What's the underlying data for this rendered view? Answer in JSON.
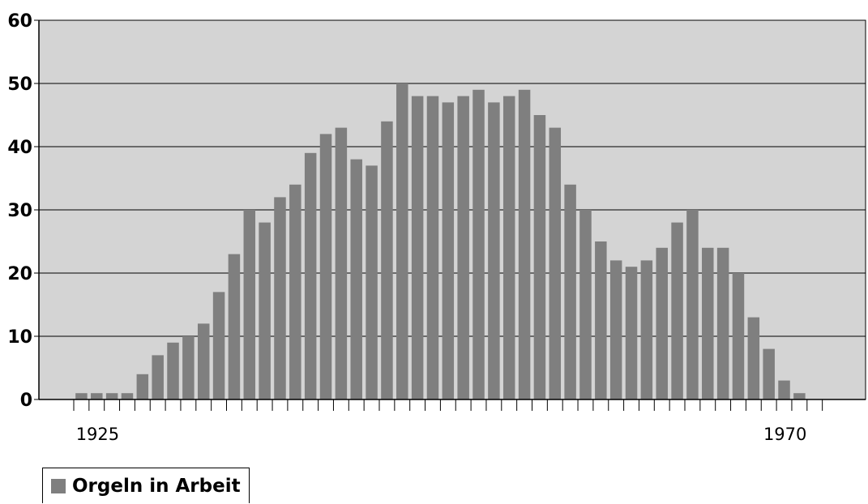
{
  "chart_data": {
    "type": "bar",
    "y_ticks": [
      "0",
      "10",
      "20",
      "30",
      "40",
      "50",
      "60"
    ],
    "ylim": [
      0,
      60
    ],
    "x_tick_labels": [
      "1925",
      "1970"
    ],
    "x_start": 1925,
    "grid": true,
    "legend_position": "bottom-left",
    "series": [
      {
        "name": "Orgeln in Arbeit",
        "color": "#7f7f7f",
        "values": [
          1,
          1,
          1,
          1,
          4,
          7,
          9,
          10,
          12,
          17,
          23,
          30,
          28,
          32,
          34,
          39,
          42,
          43,
          38,
          37,
          44,
          50,
          48,
          48,
          47,
          48,
          49,
          47,
          48,
          49,
          45,
          43,
          34,
          30,
          25,
          22,
          21,
          22,
          24,
          28,
          30,
          24,
          24,
          20,
          13,
          8,
          3,
          1
        ]
      }
    ]
  },
  "legend": {
    "label": "Orgeln in Arbeit",
    "swatch_color": "#7f7f7f"
  },
  "colors": {
    "plot_background": "#d4d4d4",
    "bar": "#7f7f7f",
    "grid": "#000000"
  }
}
